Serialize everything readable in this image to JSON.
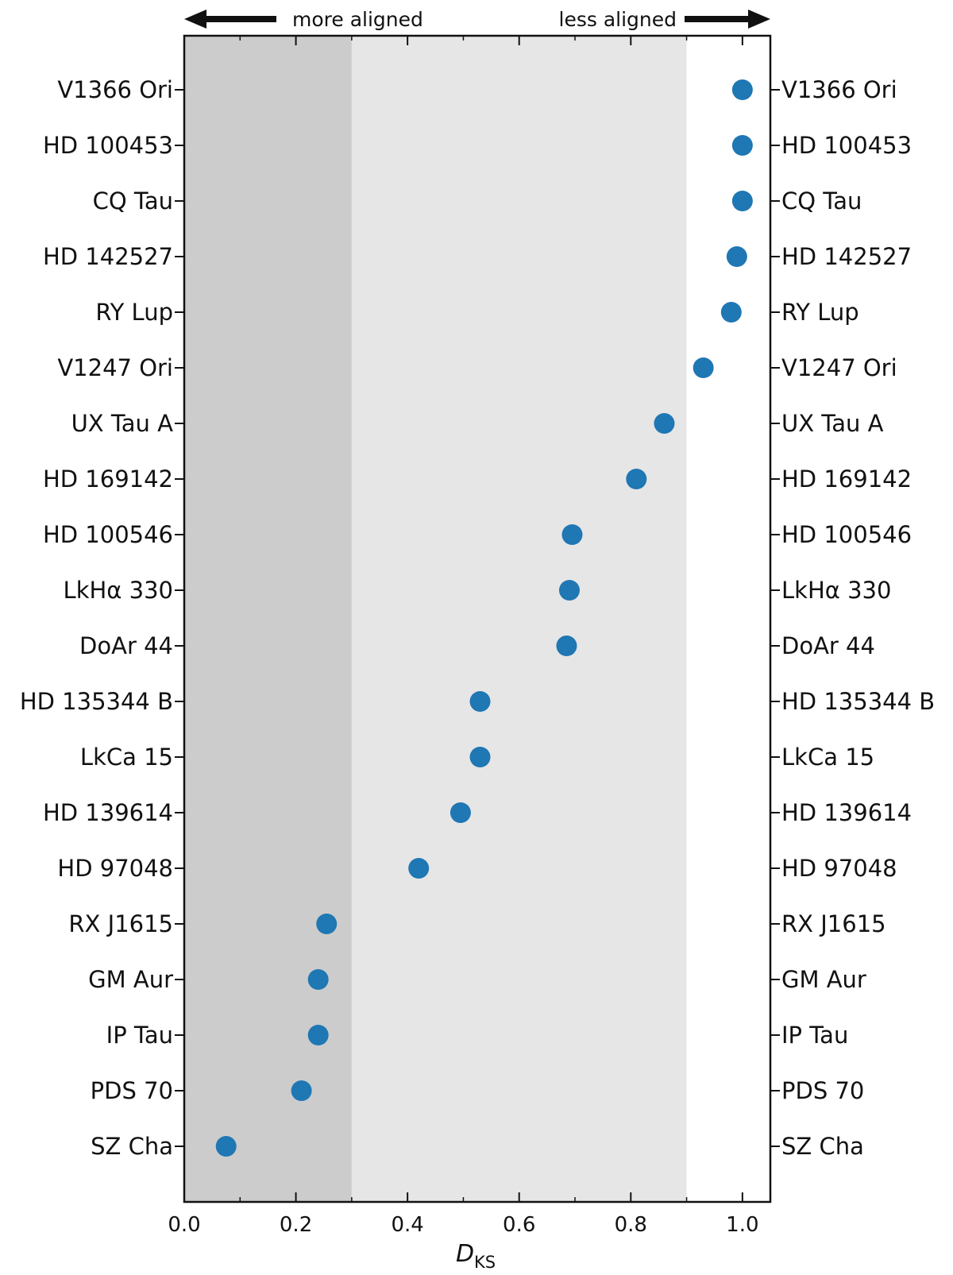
{
  "chart_data": {
    "type": "scatter",
    "xlabel": "D",
    "xlabel_subscript": "KS",
    "xlim": [
      0.0,
      1.05
    ],
    "x_ticks": [
      "0.0",
      "0.2",
      "0.4",
      "0.6",
      "0.8",
      "1.0"
    ],
    "annotations": {
      "left": "more aligned",
      "right": "less aligned"
    },
    "regions": [
      {
        "from": 0.0,
        "to": 0.3,
        "color": "#cccccc"
      },
      {
        "from": 0.3,
        "to": 0.9,
        "color": "#e6e6e6"
      }
    ],
    "marker_color": "#1f77b4",
    "categories": [
      "V1366 Ori",
      "HD 100453",
      "CQ Tau",
      "HD 142527",
      "RY Lup",
      "V1247 Ori",
      "UX Tau A",
      "HD 169142",
      "HD 100546",
      "LkHα 330",
      "DoAr 44",
      "HD 135344 B",
      "LkCa 15",
      "HD 139614",
      "HD 97048",
      "RX J1615",
      "GM Aur",
      "IP Tau",
      "PDS 70",
      "SZ Cha"
    ],
    "values": [
      1.0,
      1.0,
      1.0,
      0.99,
      0.98,
      0.93,
      0.86,
      0.81,
      0.695,
      0.69,
      0.685,
      0.53,
      0.53,
      0.495,
      0.42,
      0.255,
      0.24,
      0.24,
      0.21,
      0.075
    ]
  }
}
